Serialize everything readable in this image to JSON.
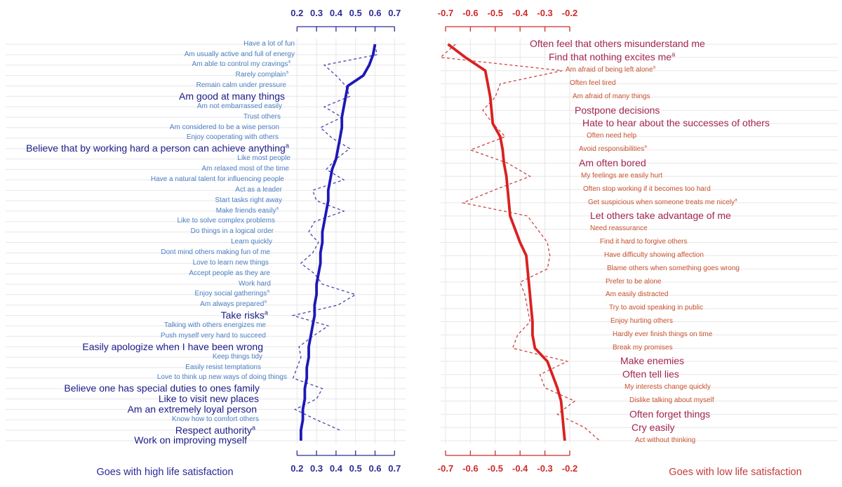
{
  "chart_data": [
    {
      "type": "line",
      "panel": "high-life-satisfaction",
      "caption": "Goes with high life satisfaction",
      "xlim": [
        0.2,
        0.7
      ],
      "x_ticks": [
        "0.2",
        "0.3",
        "0.4",
        "0.5",
        "0.6",
        "0.7"
      ],
      "grid": true,
      "label_side": "left",
      "series": [
        {
          "name": "solid",
          "style": "solid",
          "color": "#1e18b8"
        },
        {
          "name": "dashed",
          "style": "dashed",
          "color": "#4444ae"
        }
      ],
      "colors": {
        "label_regular": "#4d80c4",
        "label_emphasis": "#1d1d89",
        "axis": "#2d2d96",
        "gridline": "#e7e7e7",
        "caption": "#2a2a9a"
      },
      "items": [
        {
          "label": "Have a lot of fun",
          "sup": false,
          "bold": false,
          "solid": 0.6,
          "dashed": 0.6,
          "indent": 420
        },
        {
          "label": "Am usually active and full of energy",
          "sup": false,
          "bold": false,
          "solid": 0.59,
          "dashed": 0.61,
          "indent": 420
        },
        {
          "label": "Am able to control my cravings",
          "sup": true,
          "bold": false,
          "solid": 0.57,
          "dashed": 0.34,
          "indent": 414
        },
        {
          "label": "Rarely complain",
          "sup": true,
          "bold": false,
          "solid": 0.54,
          "dashed": 0.4,
          "indent": 411
        },
        {
          "label": "Remain calm under pressure",
          "sup": false,
          "bold": false,
          "solid": 0.46,
          "dashed": 0.45,
          "indent": 408
        },
        {
          "label": "Am good at many things",
          "sup": false,
          "bold": true,
          "solid": 0.45,
          "dashed": 0.47,
          "indent": 406
        },
        {
          "label": "Am not embarrassed easily",
          "sup": false,
          "bold": false,
          "solid": 0.44,
          "dashed": 0.34,
          "indent": 402
        },
        {
          "label": "Trust others",
          "sup": false,
          "bold": false,
          "solid": 0.43,
          "dashed": 0.43,
          "indent": 400
        },
        {
          "label": "Am considered to be a wise person",
          "sup": false,
          "bold": false,
          "solid": 0.43,
          "dashed": 0.32,
          "indent": 398
        },
        {
          "label": "Enjoy cooperating with others",
          "sup": false,
          "bold": false,
          "solid": 0.42,
          "dashed": 0.38,
          "indent": 397
        },
        {
          "label": "Believe that by working hard a person can achieve anything",
          "sup": true,
          "bold": true,
          "solid": 0.41,
          "dashed": 0.47,
          "indent": 412
        },
        {
          "label": "Like most people",
          "sup": false,
          "bold": false,
          "solid": 0.4,
          "dashed": 0.4,
          "indent": 414
        },
        {
          "label": "Am relaxed most of the time",
          "sup": false,
          "bold": false,
          "solid": 0.38,
          "dashed": 0.35,
          "indent": 412
        },
        {
          "label": "Have a natural talent for influencing people",
          "sup": false,
          "bold": false,
          "solid": 0.37,
          "dashed": 0.44,
          "indent": 405
        },
        {
          "label": "Act as a leader",
          "sup": false,
          "bold": false,
          "solid": 0.36,
          "dashed": 0.28,
          "indent": 402
        },
        {
          "label": "Start tasks right away",
          "sup": false,
          "bold": false,
          "solid": 0.36,
          "dashed": 0.3,
          "indent": 402
        },
        {
          "label": "Make friends easily",
          "sup": true,
          "bold": false,
          "solid": 0.35,
          "dashed": 0.44,
          "indent": 397
        },
        {
          "label": "Like to solve complex problems",
          "sup": false,
          "bold": false,
          "solid": 0.34,
          "dashed": 0.29,
          "indent": 392
        },
        {
          "label": "Do things in a logical order",
          "sup": false,
          "bold": false,
          "solid": 0.33,
          "dashed": 0.26,
          "indent": 390
        },
        {
          "label": "Learn quickly",
          "sup": false,
          "bold": false,
          "solid": 0.33,
          "dashed": 0.31,
          "indent": 388
        },
        {
          "label": "Dont mind others making fun of me",
          "sup": false,
          "bold": false,
          "solid": 0.32,
          "dashed": 0.28,
          "indent": 385
        },
        {
          "label": "Love to learn new things",
          "sup": false,
          "bold": false,
          "solid": 0.32,
          "dashed": 0.22,
          "indent": 383
        },
        {
          "label": "Accept people as they are",
          "sup": false,
          "bold": false,
          "solid": 0.31,
          "dashed": 0.29,
          "indent": 385
        },
        {
          "label": "Work hard",
          "sup": false,
          "bold": false,
          "solid": 0.3,
          "dashed": 0.33,
          "indent": 386
        },
        {
          "label": "Enjoy social gatherings",
          "sup": true,
          "bold": false,
          "solid": 0.3,
          "dashed": 0.5,
          "indent": 384
        },
        {
          "label": "Am always prepared",
          "sup": true,
          "bold": false,
          "solid": 0.29,
          "dashed": 0.41,
          "indent": 380
        },
        {
          "label": "Take risks",
          "sup": true,
          "bold": true,
          "solid": 0.29,
          "dashed": 0.18,
          "indent": 382
        },
        {
          "label": "Talking with others energizes me",
          "sup": false,
          "bold": false,
          "solid": 0.28,
          "dashed": 0.36,
          "indent": 379
        },
        {
          "label": "Push myself very hard to succeed",
          "sup": false,
          "bold": false,
          "solid": 0.27,
          "dashed": 0.28,
          "indent": 379
        },
        {
          "label": "Easily apologize when I have been wrong",
          "sup": false,
          "bold": true,
          "solid": 0.26,
          "dashed": 0.21,
          "indent": 375
        },
        {
          "label": "Keep things tidy",
          "sup": false,
          "bold": false,
          "solid": 0.26,
          "dashed": 0.22,
          "indent": 374
        },
        {
          "label": "Easily resist temptations",
          "sup": false,
          "bold": false,
          "solid": 0.25,
          "dashed": 0.2,
          "indent": 372
        },
        {
          "label": "Love to think up new ways of doing things",
          "sup": false,
          "bold": false,
          "solid": 0.25,
          "dashed": 0.18,
          "indent": 409
        },
        {
          "label": "Believe one has special duties to ones family",
          "sup": false,
          "bold": true,
          "solid": 0.24,
          "dashed": 0.33,
          "indent": 370
        },
        {
          "label": "Like to visit new places",
          "sup": false,
          "bold": true,
          "solid": 0.24,
          "dashed": 0.3,
          "indent": 369
        },
        {
          "label": "Am an extremely loyal person",
          "sup": false,
          "bold": true,
          "solid": 0.23,
          "dashed": 0.19,
          "indent": 366
        },
        {
          "label": "Know how to comfort others",
          "sup": false,
          "bold": false,
          "solid": 0.23,
          "dashed": 0.3,
          "indent": 369
        },
        {
          "label": "Respect authority",
          "sup": true,
          "bold": true,
          "solid": 0.22,
          "dashed": 0.42,
          "indent": 364
        },
        {
          "label": "Work on improving myself",
          "sup": false,
          "bold": true,
          "solid": 0.22,
          "dashed": null,
          "indent": 352
        }
      ]
    },
    {
      "type": "line",
      "panel": "low-life-satisfaction",
      "caption": "Goes with low life satisfaction",
      "xlim": [
        -0.7,
        -0.2
      ],
      "x_ticks": [
        "-0.7",
        "-0.6",
        "-0.5",
        "-0.4",
        "-0.3",
        "-0.2"
      ],
      "grid": true,
      "label_side": "right",
      "series": [
        {
          "name": "solid",
          "style": "solid",
          "color": "#d92121"
        },
        {
          "name": "dashed",
          "style": "dashed",
          "color": "#cc4040"
        }
      ],
      "colors": {
        "label_regular": "#c8532f",
        "label_emphasis": "#a32650",
        "axis": "#cf2b2b",
        "gridline": "#e7e7e7",
        "caption": "#c43a3a"
      },
      "items": [
        {
          "label": "Often feel that others misunderstand me",
          "sup": false,
          "bold": true,
          "solid": -0.69,
          "dashed": -0.66,
          "indent": 755
        },
        {
          "label": "Find that nothing excites me",
          "sup": true,
          "bold": true,
          "solid": -0.62,
          "dashed": -0.72,
          "indent": 782
        },
        {
          "label": "Am afraid of being left alone",
          "sup": true,
          "bold": false,
          "solid": -0.54,
          "dashed": -0.23,
          "indent": 806
        },
        {
          "label": "Often feel tired",
          "sup": false,
          "bold": false,
          "solid": -0.53,
          "dashed": -0.48,
          "indent": 812
        },
        {
          "label": "Am afraid of many things",
          "sup": false,
          "bold": false,
          "solid": -0.52,
          "dashed": -0.5,
          "indent": 816
        },
        {
          "label": "Postpone decisions",
          "sup": false,
          "bold": true,
          "solid": -0.515,
          "dashed": -0.55,
          "indent": 819
        },
        {
          "label": "Hate to hear about the successes of others",
          "sup": false,
          "bold": true,
          "solid": -0.51,
          "dashed": -0.51,
          "indent": 830
        },
        {
          "label": "Often need help",
          "sup": false,
          "bold": false,
          "solid": -0.48,
          "dashed": -0.46,
          "indent": 836
        },
        {
          "label": "Avoid responsibilities",
          "sup": true,
          "bold": false,
          "solid": -0.47,
          "dashed": -0.6,
          "indent": 825
        },
        {
          "label": "Am often bored",
          "sup": false,
          "bold": true,
          "solid": -0.465,
          "dashed": -0.45,
          "indent": 825
        },
        {
          "label": "My feelings are easily hurt",
          "sup": false,
          "bold": false,
          "solid": -0.455,
          "dashed": -0.36,
          "indent": 828
        },
        {
          "label": "Often stop working if it becomes too hard",
          "sup": false,
          "bold": false,
          "solid": -0.45,
          "dashed": -0.5,
          "indent": 831
        },
        {
          "label": "Get suspicious when someone treats me nicely",
          "sup": true,
          "bold": false,
          "solid": -0.445,
          "dashed": -0.63,
          "indent": 838
        },
        {
          "label": "Let others take advantage of me",
          "sup": false,
          "bold": true,
          "solid": -0.44,
          "dashed": -0.37,
          "indent": 841
        },
        {
          "label": "Need reassurance",
          "sup": false,
          "bold": false,
          "solid": -0.42,
          "dashed": -0.33,
          "indent": 841
        },
        {
          "label": "Find it hard to forgive others",
          "sup": false,
          "bold": false,
          "solid": -0.4,
          "dashed": -0.29,
          "indent": 855
        },
        {
          "label": "Have difficulty showing affection",
          "sup": false,
          "bold": false,
          "solid": -0.375,
          "dashed": -0.28,
          "indent": 861
        },
        {
          "label": "Blame others when something goes wrong",
          "sup": false,
          "bold": false,
          "solid": -0.37,
          "dashed": -0.29,
          "indent": 865
        },
        {
          "label": "Prefer to be alone",
          "sup": false,
          "bold": false,
          "solid": -0.365,
          "dashed": -0.4,
          "indent": 863
        },
        {
          "label": "Am easily distracted",
          "sup": false,
          "bold": false,
          "solid": -0.36,
          "dashed": -0.38,
          "indent": 863
        },
        {
          "label": "Try to avoid speaking in public",
          "sup": false,
          "bold": false,
          "solid": -0.355,
          "dashed": -0.37,
          "indent": 868
        },
        {
          "label": "Enjoy hurting others",
          "sup": false,
          "bold": false,
          "solid": -0.35,
          "dashed": -0.36,
          "indent": 870
        },
        {
          "label": "Hardly ever finish things on time",
          "sup": false,
          "bold": false,
          "solid": -0.35,
          "dashed": -0.41,
          "indent": 873
        },
        {
          "label": "Break my promises",
          "sup": false,
          "bold": false,
          "solid": -0.34,
          "dashed": -0.43,
          "indent": 873
        },
        {
          "label": "Make enemies",
          "sup": false,
          "bold": true,
          "solid": -0.29,
          "dashed": -0.21,
          "indent": 884
        },
        {
          "label": "Often tell lies",
          "sup": false,
          "bold": true,
          "solid": -0.27,
          "dashed": -0.32,
          "indent": 887
        },
        {
          "label": "My interests change quickly",
          "sup": false,
          "bold": false,
          "solid": -0.25,
          "dashed": -0.3,
          "indent": 890
        },
        {
          "label": "Dislike talking about myself",
          "sup": false,
          "bold": false,
          "solid": -0.235,
          "dashed": -0.18,
          "indent": 897
        },
        {
          "label": "Often forget things",
          "sup": false,
          "bold": true,
          "solid": -0.23,
          "dashed": -0.25,
          "indent": 897
        },
        {
          "label": "Cry easily",
          "sup": false,
          "bold": true,
          "solid": -0.225,
          "dashed": -0.14,
          "indent": 900
        },
        {
          "label": "Act without thinking",
          "sup": false,
          "bold": false,
          "solid": -0.22,
          "dashed": -0.08,
          "indent": 905
        }
      ]
    }
  ]
}
